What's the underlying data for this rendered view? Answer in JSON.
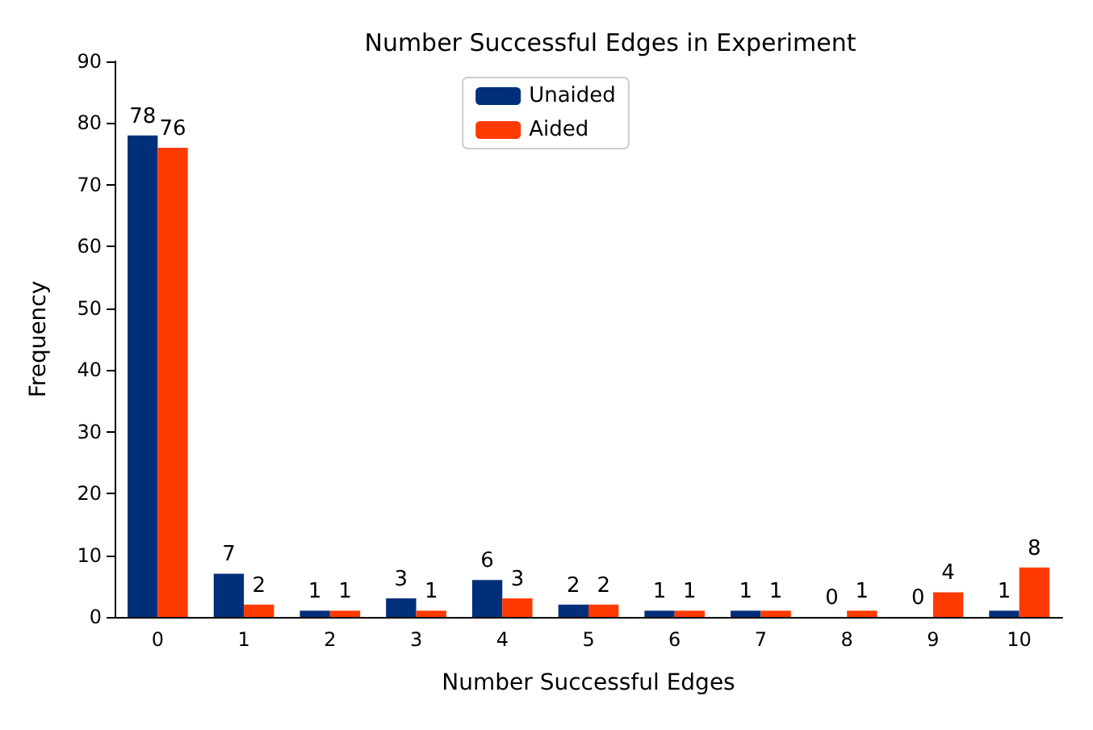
{
  "chart_data": {
    "type": "bar",
    "title": "Number Successful Edges in Experiment",
    "xlabel": "Number Successful Edges",
    "ylabel": "Frequency",
    "categories": [
      "0",
      "1",
      "2",
      "3",
      "4",
      "5",
      "6",
      "7",
      "8",
      "9",
      "10"
    ],
    "series": [
      {
        "name": "Unaided",
        "color": "#002f7a",
        "values": [
          78,
          7,
          1,
          3,
          6,
          2,
          1,
          1,
          0,
          0,
          1
        ]
      },
      {
        "name": "Aided",
        "color": "#ff3a00",
        "values": [
          76,
          2,
          1,
          1,
          3,
          2,
          1,
          1,
          1,
          4,
          8
        ]
      }
    ],
    "ylim": [
      0,
      90
    ],
    "yticks": [
      0,
      10,
      20,
      30,
      40,
      50,
      60,
      70,
      80,
      90
    ],
    "grid": false,
    "legend": "top",
    "data_labels": true
  }
}
